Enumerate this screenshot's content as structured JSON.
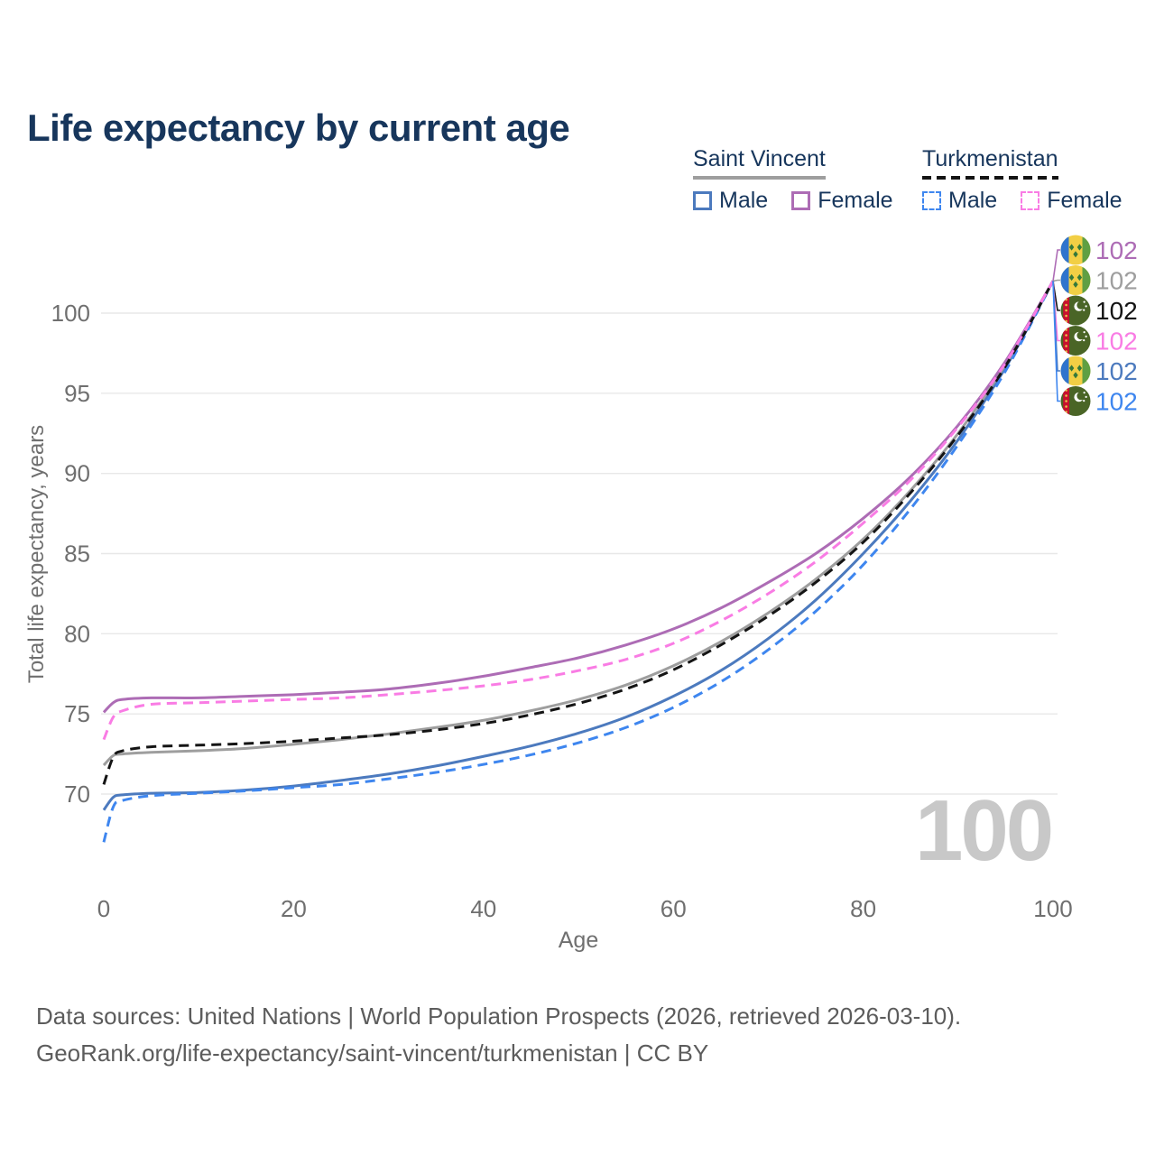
{
  "title": "Life expectancy by current age",
  "legend": {
    "groups": [
      {
        "name": "Saint Vincent",
        "line_style": "solid",
        "rule_color": "#9e9e9e",
        "items": [
          {
            "label": "Male",
            "series": "sv_male"
          },
          {
            "label": "Female",
            "series": "sv_female"
          }
        ]
      },
      {
        "name": "Turkmenistan",
        "line_style": "dashed",
        "rule_color": "#141414",
        "items": [
          {
            "label": "Male",
            "series": "tm_male"
          },
          {
            "label": "Female",
            "series": "tm_female"
          }
        ]
      }
    ]
  },
  "chart_data": {
    "type": "line",
    "title": "Life expectancy by current age",
    "xlabel": "Age",
    "ylabel": "Total life expectancy, years",
    "xlim": [
      0,
      100
    ],
    "ylim": [
      66.5,
      103
    ],
    "x_ticks": [
      0,
      20,
      40,
      60,
      80,
      100
    ],
    "y_ticks": [
      70,
      75,
      80,
      85,
      90,
      95,
      100
    ],
    "grid": true,
    "legend_position": "top-right",
    "age_indicator": "100",
    "ages": [
      0,
      1,
      2,
      5,
      10,
      15,
      20,
      25,
      30,
      35,
      40,
      45,
      50,
      55,
      60,
      65,
      70,
      75,
      80,
      85,
      90,
      95,
      100
    ],
    "series": [
      {
        "id": "sv_male",
        "country": "Saint Vincent",
        "sex": "Male",
        "color": "#4c7abe",
        "dashed": false,
        "flag": "saint-vincent",
        "end_label": "102",
        "values": [
          69.0,
          69.8,
          69.95,
          70.05,
          70.1,
          70.25,
          70.5,
          70.85,
          71.25,
          71.75,
          72.35,
          73.0,
          73.8,
          74.8,
          76.1,
          77.7,
          79.7,
          82.1,
          85.0,
          88.3,
          92.1,
          96.6,
          102
        ]
      },
      {
        "id": "sv_both",
        "country": "Saint Vincent",
        "sex": "Both",
        "color": "#9e9e9e",
        "dashed": false,
        "flag": "saint-vincent",
        "end_label": "102",
        "values": [
          71.8,
          72.4,
          72.5,
          72.6,
          72.7,
          72.85,
          73.1,
          73.4,
          73.75,
          74.15,
          74.6,
          75.2,
          75.9,
          76.8,
          78.0,
          79.5,
          81.3,
          83.4,
          85.9,
          88.95,
          92.5,
          96.8,
          102
        ]
      },
      {
        "id": "sv_female",
        "country": "Saint Vincent",
        "sex": "Female",
        "color": "#ad6cb5",
        "dashed": false,
        "flag": "saint-vincent",
        "end_label": "102",
        "values": [
          75.1,
          75.7,
          75.9,
          76.0,
          76.0,
          76.1,
          76.2,
          76.35,
          76.55,
          76.9,
          77.35,
          77.9,
          78.5,
          79.3,
          80.3,
          81.6,
          83.2,
          85.0,
          87.2,
          89.8,
          93.0,
          97.0,
          102
        ]
      },
      {
        "id": "tm_male",
        "country": "Turkmenistan",
        "sex": "Male",
        "color": "#3e86ef",
        "dashed": true,
        "flag": "turkmenistan",
        "end_label": "102",
        "values": [
          67.0,
          69.2,
          69.6,
          69.9,
          70.05,
          70.2,
          70.4,
          70.6,
          70.95,
          71.35,
          71.85,
          72.45,
          73.2,
          74.15,
          75.4,
          77.0,
          79.0,
          81.4,
          84.3,
          87.8,
          91.8,
          96.4,
          102
        ]
      },
      {
        "id": "tm_both",
        "country": "Turkmenistan",
        "sex": "Both",
        "color": "#141414",
        "dashed": true,
        "flag": "turkmenistan",
        "end_label": "102",
        "values": [
          70.6,
          72.3,
          72.7,
          72.95,
          73.05,
          73.15,
          73.3,
          73.5,
          73.7,
          74.0,
          74.4,
          74.95,
          75.65,
          76.55,
          77.75,
          79.3,
          81.1,
          83.2,
          85.7,
          88.8,
          92.4,
          96.7,
          102
        ]
      },
      {
        "id": "tm_female",
        "country": "Turkmenistan",
        "sex": "Female",
        "color": "#f97ce4",
        "dashed": true,
        "flag": "turkmenistan",
        "end_label": "102",
        "values": [
          73.4,
          74.8,
          75.2,
          75.6,
          75.7,
          75.8,
          75.9,
          76.0,
          76.2,
          76.45,
          76.75,
          77.15,
          77.7,
          78.4,
          79.4,
          80.8,
          82.5,
          84.5,
          86.9,
          89.6,
          92.9,
          96.9,
          102
        ]
      }
    ],
    "end_label_order": [
      "sv_female",
      "sv_both",
      "tm_both",
      "tm_female",
      "sv_male",
      "tm_male"
    ]
  },
  "footer": {
    "line1": "Data sources: United Nations | World Population Prospects (2026, retrieved 2026-03-10).",
    "line2": "GeoRank.org/life-expectancy/saint-vincent/turkmenistan | CC BY"
  }
}
